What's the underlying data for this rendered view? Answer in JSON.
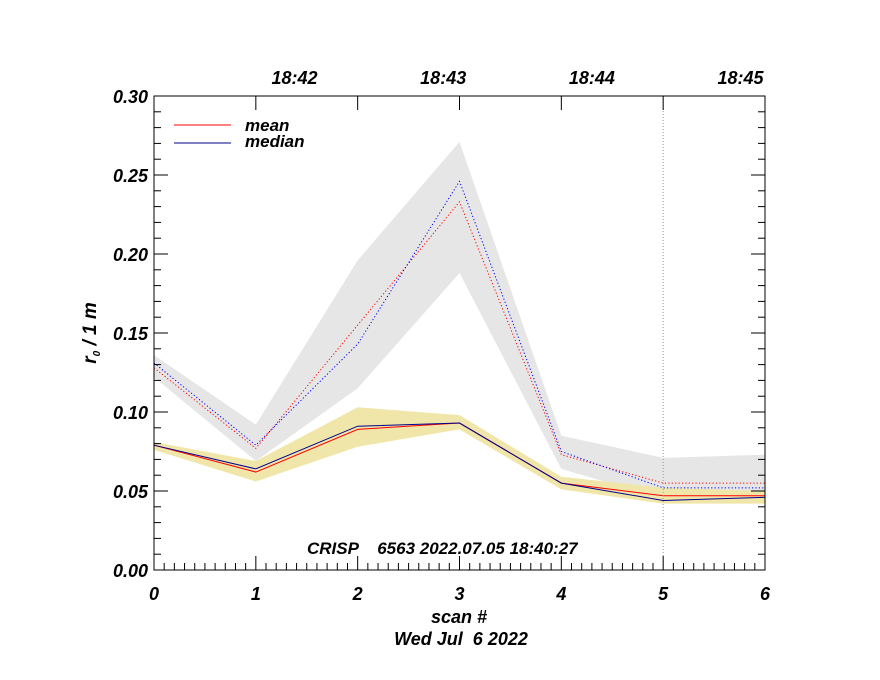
{
  "chart_data": {
    "type": "line",
    "title": "",
    "xlabel": "scan #",
    "ylabel": "r₀ / 1 m",
    "ylabel_main": "r",
    "ylabel_sub": "0",
    "ylabel_tail": " / 1 m",
    "date_label": "Wed Jul  6 2022",
    "annotation": "CRISP    6563 2022.07.05 18:40:27",
    "xlim": [
      0,
      6
    ],
    "ylim": [
      0,
      0.3
    ],
    "x_ticks": [
      0,
      1,
      2,
      3,
      4,
      5,
      6
    ],
    "x_tick_labels": [
      "0",
      "1",
      "2",
      "3",
      "4",
      "5",
      "6"
    ],
    "y_ticks": [
      0.0,
      0.05,
      0.1,
      0.15,
      0.2,
      0.25,
      0.3
    ],
    "y_tick_labels": [
      "0.00",
      "0.05",
      "0.10",
      "0.15",
      "0.20",
      "0.25",
      "0.30"
    ],
    "top_axis_ticks": [
      {
        "x": 1.38,
        "label": "18:42"
      },
      {
        "x": 2.84,
        "label": "18:43"
      },
      {
        "x": 4.3,
        "label": "18:44"
      },
      {
        "x": 5.76,
        "label": "18:45"
      }
    ],
    "vertical_marker_x": 5,
    "legend": [
      {
        "name": "mean",
        "color": "#ff0000"
      },
      {
        "name": "median",
        "color": "#00008b"
      }
    ],
    "x": [
      0,
      1,
      2,
      3,
      4,
      5,
      6
    ],
    "series": [
      {
        "name": "mean (upper)",
        "style": "dotted",
        "color": "#ff0000",
        "values": [
          0.128,
          0.077,
          0.155,
          0.233,
          0.073,
          0.055,
          0.055
        ]
      },
      {
        "name": "median (upper)",
        "style": "dotted",
        "color": "#0000ff",
        "values": [
          0.131,
          0.079,
          0.143,
          0.246,
          0.075,
          0.052,
          0.052
        ]
      },
      {
        "name": "mean",
        "style": "solid",
        "color": "#ff0000",
        "values": [
          0.079,
          0.062,
          0.089,
          0.093,
          0.055,
          0.047,
          0.047
        ]
      },
      {
        "name": "median",
        "style": "solid",
        "color": "#00008b",
        "values": [
          0.079,
          0.064,
          0.091,
          0.093,
          0.055,
          0.044,
          0.046
        ]
      }
    ],
    "bands": [
      {
        "name": "upper range",
        "color": "#e6e6e6",
        "lower": [
          0.122,
          0.069,
          0.115,
          0.188,
          0.064,
          0.045,
          0.044
        ],
        "upper": [
          0.136,
          0.092,
          0.196,
          0.271,
          0.085,
          0.071,
          0.073
        ]
      },
      {
        "name": "lower range",
        "color": "#f0e6aa",
        "lower": [
          0.076,
          0.056,
          0.078,
          0.089,
          0.051,
          0.042,
          0.042
        ],
        "upper": [
          0.081,
          0.069,
          0.103,
          0.098,
          0.059,
          0.052,
          0.05
        ]
      }
    ]
  }
}
